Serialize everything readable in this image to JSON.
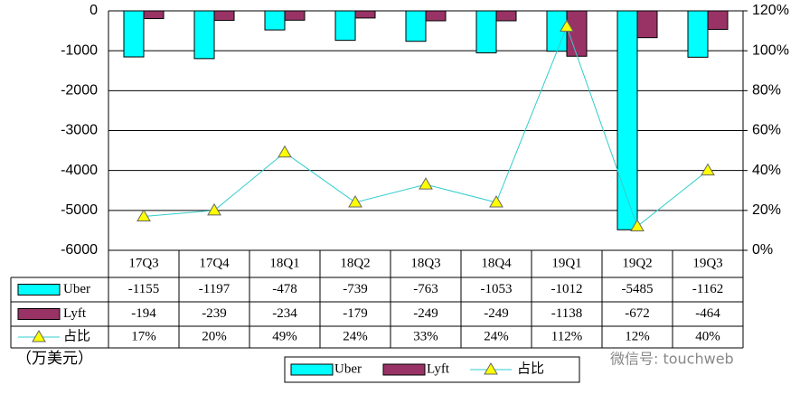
{
  "chart_data": {
    "type": "bar_line",
    "categories": [
      "17Q3",
      "17Q4",
      "18Q1",
      "18Q2",
      "18Q3",
      "18Q4",
      "19Q1",
      "19Q2",
      "19Q3"
    ],
    "series": [
      {
        "name": "Uber",
        "color": "#00ffff",
        "type": "bar",
        "values": [
          -1155,
          -1197,
          -478,
          -739,
          -763,
          -1053,
          -1012,
          -5485,
          -1162
        ]
      },
      {
        "name": "Lyft",
        "color": "#993366",
        "type": "bar",
        "values": [
          -194,
          -239,
          -234,
          -179,
          -249,
          -249,
          -1138,
          -672,
          -464
        ]
      },
      {
        "name": "占比",
        "color": "#33cccc",
        "marker_color": "#ffff00",
        "type": "line",
        "axis": "y2",
        "values": [
          17,
          20,
          49,
          24,
          33,
          24,
          112,
          12,
          40
        ],
        "value_labels": [
          "17%",
          "20%",
          "49%",
          "24%",
          "33%",
          "24%",
          "112%",
          "12%",
          "40%"
        ]
      }
    ],
    "ylim": [
      -6000,
      0
    ],
    "yticks": [
      0,
      -1000,
      -2000,
      -3000,
      -4000,
      -5000,
      -6000
    ],
    "y2lim": [
      0,
      120
    ],
    "y2ticks": [
      {
        "value": 120,
        "label": "120%"
      },
      {
        "value": 100,
        "label": "100%"
      },
      {
        "value": 80,
        "label": "80%"
      },
      {
        "value": 60,
        "label": "60%"
      },
      {
        "value": 40,
        "label": "40%"
      },
      {
        "value": 20,
        "label": "20%"
      },
      {
        "value": 0,
        "label": "0%"
      }
    ],
    "grid": true,
    "unit_label": "（万美元）",
    "watermark": "微信号: touchweb"
  }
}
